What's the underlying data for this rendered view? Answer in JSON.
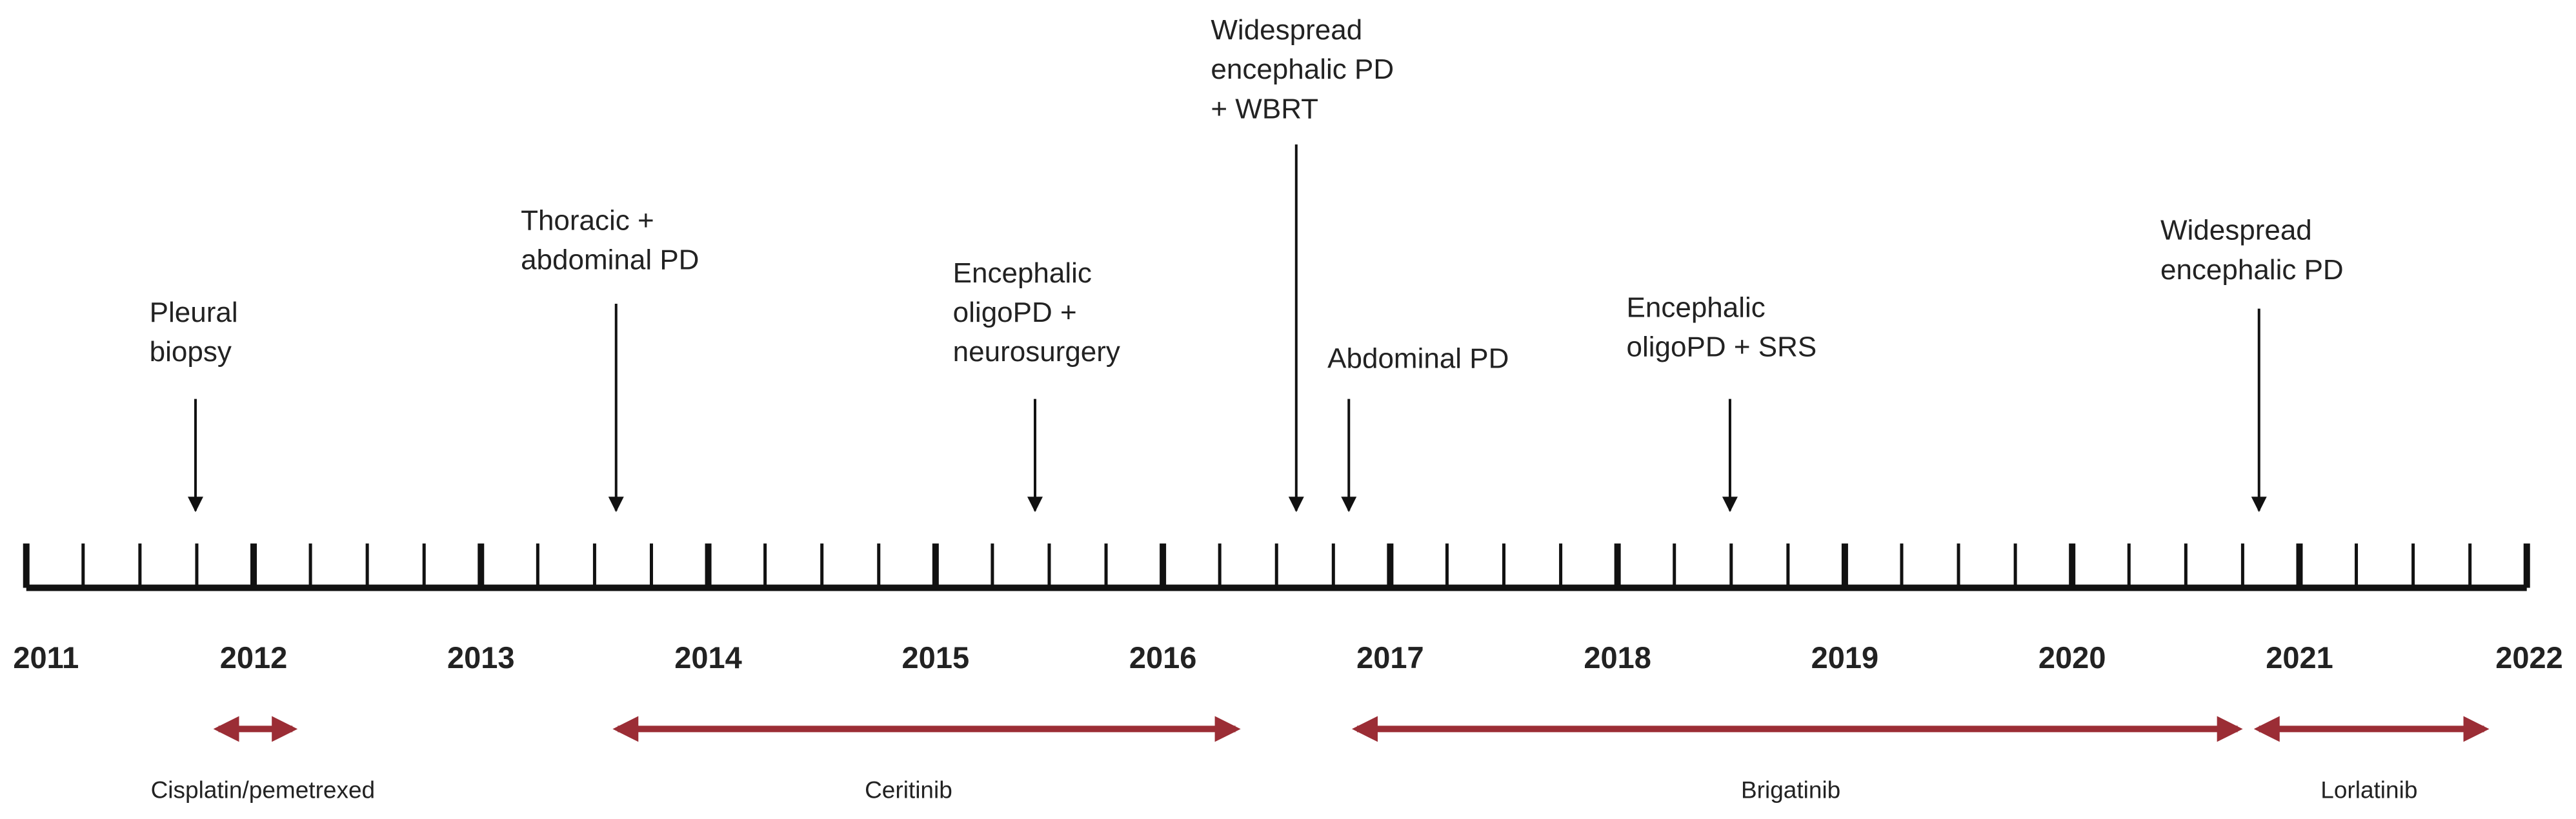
{
  "years": [
    "2011",
    "2012",
    "2013",
    "2014",
    "2015",
    "2016",
    "2017",
    "2018",
    "2019",
    "2020",
    "2021",
    "2022"
  ],
  "events": [
    {
      "lines": [
        "Pleural",
        "biopsy"
      ]
    },
    {
      "lines": [
        "Thoracic +",
        "abdominal PD"
      ]
    },
    {
      "lines": [
        "Encephalic",
        "oligoPD +",
        "neurosurgery"
      ]
    },
    {
      "lines": [
        "Widespread",
        "encephalic PD",
        "+ WBRT"
      ]
    },
    {
      "lines": [
        "Abdominal PD"
      ]
    },
    {
      "lines": [
        "Encephalic",
        "oligoPD + SRS"
      ]
    },
    {
      "lines": [
        "Widespread",
        "encephalic PD"
      ]
    }
  ],
  "treatments": [
    {
      "label": "Cisplatin/pemetrexed"
    },
    {
      "label": "Ceritinib"
    },
    {
      "label": "Brigatinib"
    },
    {
      "label": "Lorlatinib"
    }
  ]
}
